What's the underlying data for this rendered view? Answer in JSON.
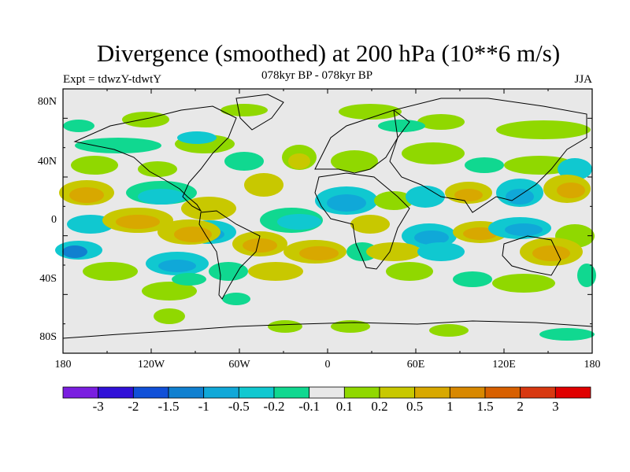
{
  "title": "Divergence (smoothed) at 200 hPa (10**6 m/s)",
  "subtitle": "078kyr BP - 078kyr BP",
  "left_label": "Expt = tdwzY-tdwtY",
  "right_label": "JJA",
  "lat_labels": [
    "80N",
    "40N",
    "0",
    "40S",
    "80S"
  ],
  "lon_labels": [
    "180",
    "120W",
    "60W",
    "0",
    "60E",
    "120E",
    "180"
  ],
  "colorbar": {
    "colors": [
      "#7a1ee0",
      "#3010d8",
      "#1050d8",
      "#1080d0",
      "#10a8d8",
      "#10c8d0",
      "#10d890",
      "#e8e8e8",
      "#90d800",
      "#c8c800",
      "#d8a800",
      "#d88800",
      "#d86000",
      "#d83810",
      "#e00000"
    ],
    "labels": [
      "-3",
      "-2",
      "-1.5",
      "-1",
      "-0.5",
      "-0.2",
      "-0.1",
      "0.1",
      "0.2",
      "0.5",
      "1",
      "1.5",
      "2",
      "3"
    ]
  },
  "map_colors": {
    "background": "#e8e8e8",
    "pos_small": "#90d800",
    "pos_mid": "#c8c800",
    "pos_large": "#d8a800",
    "neg_small": "#10d890",
    "neg_mid": "#10c8d0",
    "neg_large": "#10a8d8",
    "neg_strong": "#1080d0",
    "pos_strong": "#d88800"
  }
}
